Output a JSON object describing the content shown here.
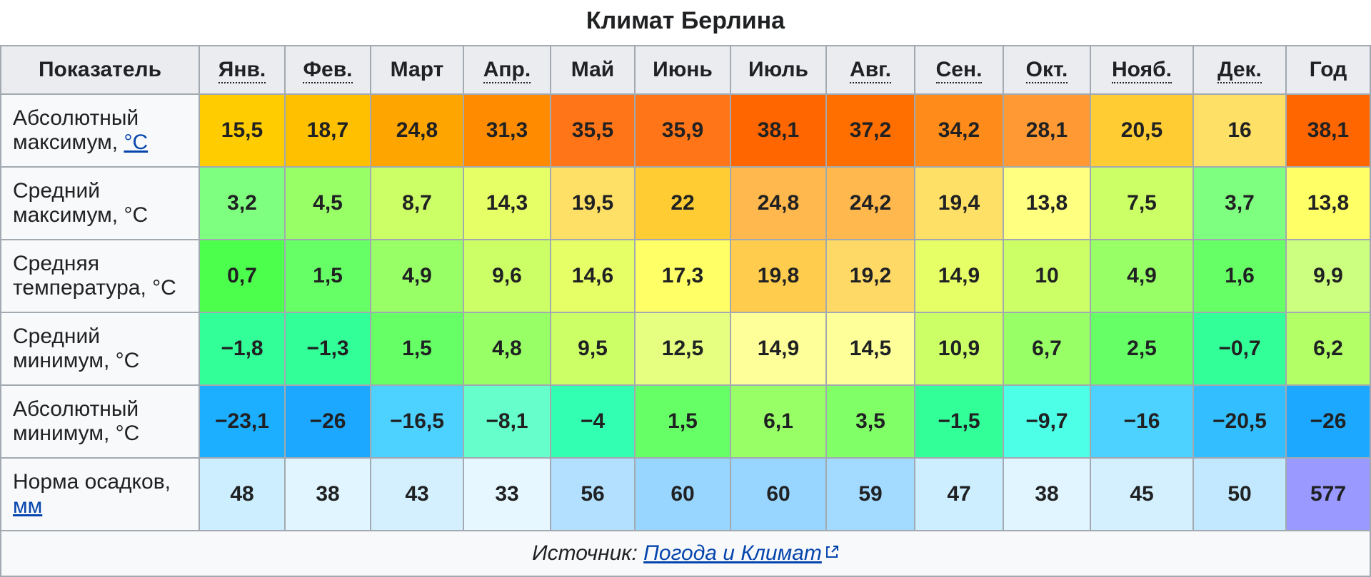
{
  "title": "Климат Берлина",
  "link_color": "#0645ad",
  "header_bg": "#eaecf0",
  "rowhead_bg": "#f8f9fa",
  "border_color": "#a2a9b1",
  "columns": [
    {
      "label": "Показатель",
      "underline": false
    },
    {
      "label": "Янв.",
      "underline": true
    },
    {
      "label": "Фев.",
      "underline": true
    },
    {
      "label": "Март",
      "underline": false
    },
    {
      "label": "Апр.",
      "underline": true
    },
    {
      "label": "Май",
      "underline": false
    },
    {
      "label": "Июнь",
      "underline": false
    },
    {
      "label": "Июль",
      "underline": false
    },
    {
      "label": "Авг.",
      "underline": true
    },
    {
      "label": "Сен.",
      "underline": true
    },
    {
      "label": "Окт.",
      "underline": true
    },
    {
      "label": "Нояб.",
      "underline": true
    },
    {
      "label": "Дек.",
      "underline": true
    },
    {
      "label": "Год",
      "underline": false
    }
  ],
  "rows": [
    {
      "label": "Абсолютный максимум, ",
      "unit": "°C",
      "unit_is_link": true,
      "cells": [
        {
          "v": "15,5",
          "bg": "#ffcc00"
        },
        {
          "v": "18,7",
          "bg": "#ffc000"
        },
        {
          "v": "24,8",
          "bg": "#ffa500"
        },
        {
          "v": "31,3",
          "bg": "#ff8c00"
        },
        {
          "v": "35,5",
          "bg": "#ff7518"
        },
        {
          "v": "35,9",
          "bg": "#ff7518"
        },
        {
          "v": "38,1",
          "bg": "#ff6600"
        },
        {
          "v": "37,2",
          "bg": "#ff6f00"
        },
        {
          "v": "34,2",
          "bg": "#ff8c1a"
        },
        {
          "v": "28,1",
          "bg": "#ff9933"
        },
        {
          "v": "20,5",
          "bg": "#ffcc33"
        },
        {
          "v": "16",
          "bg": "#ffe066"
        },
        {
          "v": "38,1",
          "bg": "#ff6600"
        }
      ]
    },
    {
      "label": "Средний максимум, °C",
      "cells": [
        {
          "v": "3,2",
          "bg": "#7fff7f"
        },
        {
          "v": "4,5",
          "bg": "#99ff66"
        },
        {
          "v": "8,7",
          "bg": "#ccff66"
        },
        {
          "v": "14,3",
          "bg": "#e6ff66"
        },
        {
          "v": "19,5",
          "bg": "#ffe066"
        },
        {
          "v": "22",
          "bg": "#ffcc33"
        },
        {
          "v": "24,8",
          "bg": "#ffb84d"
        },
        {
          "v": "24,2",
          "bg": "#ffb84d"
        },
        {
          "v": "19,4",
          "bg": "#ffe066"
        },
        {
          "v": "13,8",
          "bg": "#ffff80"
        },
        {
          "v": "7,5",
          "bg": "#ccff66"
        },
        {
          "v": "3,7",
          "bg": "#7fff7f"
        },
        {
          "v": "13,8",
          "bg": "#ffff66"
        }
      ]
    },
    {
      "label": "Средняя температура, °C",
      "cells": [
        {
          "v": "0,7",
          "bg": "#4dff4d"
        },
        {
          "v": "1,5",
          "bg": "#66ff66"
        },
        {
          "v": "4,9",
          "bg": "#99ff66"
        },
        {
          "v": "9,6",
          "bg": "#ccff66"
        },
        {
          "v": "14,6",
          "bg": "#e6ff66"
        },
        {
          "v": "17,3",
          "bg": "#ffff66"
        },
        {
          "v": "19,8",
          "bg": "#ffcc4d"
        },
        {
          "v": "19,2",
          "bg": "#ffd966"
        },
        {
          "v": "14,9",
          "bg": "#e6ff66"
        },
        {
          "v": "10",
          "bg": "#ccff66"
        },
        {
          "v": "4,9",
          "bg": "#99ff66"
        },
        {
          "v": "1,6",
          "bg": "#66ff66"
        },
        {
          "v": "9,9",
          "bg": "#ccff80"
        }
      ]
    },
    {
      "label": "Средний минимум, °C",
      "cells": [
        {
          "v": "−1,8",
          "bg": "#33ff99"
        },
        {
          "v": "−1,3",
          "bg": "#33ff99"
        },
        {
          "v": "1,5",
          "bg": "#66ff66"
        },
        {
          "v": "4,8",
          "bg": "#99ff66"
        },
        {
          "v": "9,5",
          "bg": "#ccff66"
        },
        {
          "v": "12,5",
          "bg": "#e6ff80"
        },
        {
          "v": "14,9",
          "bg": "#ffff99"
        },
        {
          "v": "14,5",
          "bg": "#ffff99"
        },
        {
          "v": "10,9",
          "bg": "#ccff66"
        },
        {
          "v": "6,7",
          "bg": "#99ff66"
        },
        {
          "v": "2,5",
          "bg": "#66ff66"
        },
        {
          "v": "−0,7",
          "bg": "#33ff99"
        },
        {
          "v": "6,2",
          "bg": "#b3ff66"
        }
      ]
    },
    {
      "label": "Абсолютный минимум, °C",
      "cells": [
        {
          "v": "−23,1",
          "bg": "#1cafff"
        },
        {
          "v": "−26",
          "bg": "#1ca8ff"
        },
        {
          "v": "−16,5",
          "bg": "#4dd2ff"
        },
        {
          "v": "−8,1",
          "bg": "#66ffcc"
        },
        {
          "v": "−4",
          "bg": "#33ffb3"
        },
        {
          "v": "1,5",
          "bg": "#66ff66"
        },
        {
          "v": "6,1",
          "bg": "#99ff66"
        },
        {
          "v": "3,5",
          "bg": "#80ff66"
        },
        {
          "v": "−1,5",
          "bg": "#33ff99"
        },
        {
          "v": "−9,7",
          "bg": "#4dffe6"
        },
        {
          "v": "−16",
          "bg": "#4dd2ff"
        },
        {
          "v": "−20,5",
          "bg": "#33bfff"
        },
        {
          "v": "−26",
          "bg": "#1ca8ff"
        }
      ]
    },
    {
      "label": "Норма осадков, ",
      "unit": "мм",
      "unit_is_link": true,
      "cells": [
        {
          "v": "48",
          "bg": "#cceeff"
        },
        {
          "v": "38",
          "bg": "#e0f5ff"
        },
        {
          "v": "43",
          "bg": "#d4f0ff"
        },
        {
          "v": "33",
          "bg": "#e6f7ff"
        },
        {
          "v": "56",
          "bg": "#b3e0ff"
        },
        {
          "v": "60",
          "bg": "#99d6ff"
        },
        {
          "v": "60",
          "bg": "#99d6ff"
        },
        {
          "v": "59",
          "bg": "#a3daff"
        },
        {
          "v": "47",
          "bg": "#cceeff"
        },
        {
          "v": "38",
          "bg": "#e0f5ff"
        },
        {
          "v": "45",
          "bg": "#d4f0ff"
        },
        {
          "v": "50",
          "bg": "#c2e8ff"
        },
        {
          "v": "577",
          "bg": "#9999ff"
        }
      ]
    }
  ],
  "footer": {
    "prefix": "Источник: ",
    "link_text": "Погода и Климат"
  },
  "column_widths": [
    "auto",
    "102px",
    "102px",
    "112px",
    "104px",
    "100px",
    "116px",
    "116px",
    "106px",
    "106px",
    "104px",
    "126px",
    "112px",
    "100px"
  ]
}
